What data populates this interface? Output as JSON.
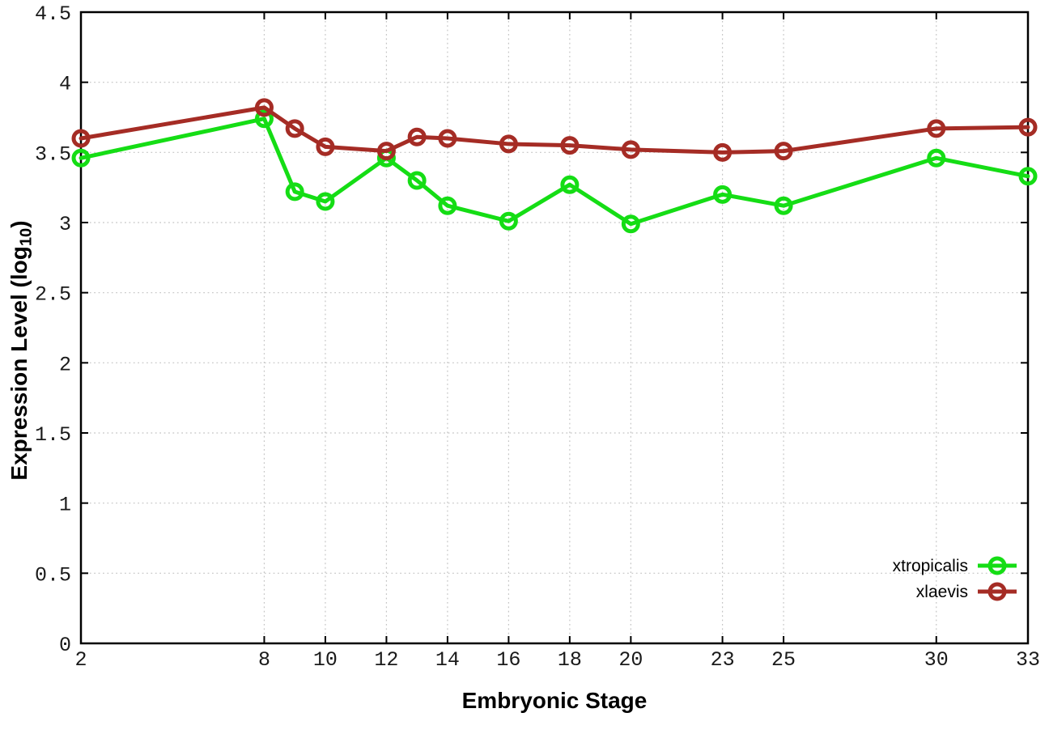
{
  "chart_data": {
    "type": "line",
    "title": "",
    "xlabel": "Embryonic Stage",
    "ylabel": "Expression Level (log10)",
    "ylabel_parts": {
      "main": "Expression Level (log",
      "sub": "10",
      "close": ")"
    },
    "x": [
      2,
      8,
      9,
      10,
      12,
      13,
      14,
      16,
      18,
      20,
      23,
      25,
      30,
      33
    ],
    "xticks": [
      2,
      8,
      10,
      12,
      14,
      16,
      18,
      20,
      23,
      25,
      30,
      33
    ],
    "xlim": [
      2,
      33
    ],
    "ylim": [
      0,
      4.5
    ],
    "ytick_step": 0.5,
    "grid": true,
    "legend_position": "inside-bottom-right",
    "series": [
      {
        "name": "xtropicalis",
        "color": "#15dd15",
        "marker": "open-circle",
        "values": [
          3.46,
          3.74,
          3.22,
          3.15,
          3.46,
          3.3,
          3.12,
          3.01,
          3.27,
          2.99,
          3.2,
          3.12,
          3.46,
          3.33
        ]
      },
      {
        "name": "xlaevis",
        "color": "#a52c25",
        "marker": "open-circle",
        "values": [
          3.6,
          3.82,
          3.67,
          3.54,
          3.51,
          3.61,
          3.6,
          3.56,
          3.55,
          3.52,
          3.5,
          3.51,
          3.67,
          3.68
        ]
      }
    ]
  },
  "colors": {
    "background": "#ffffff",
    "axis": "#000000",
    "grid": "#c4c4c4",
    "tick_label": "#1a1a1a"
  }
}
